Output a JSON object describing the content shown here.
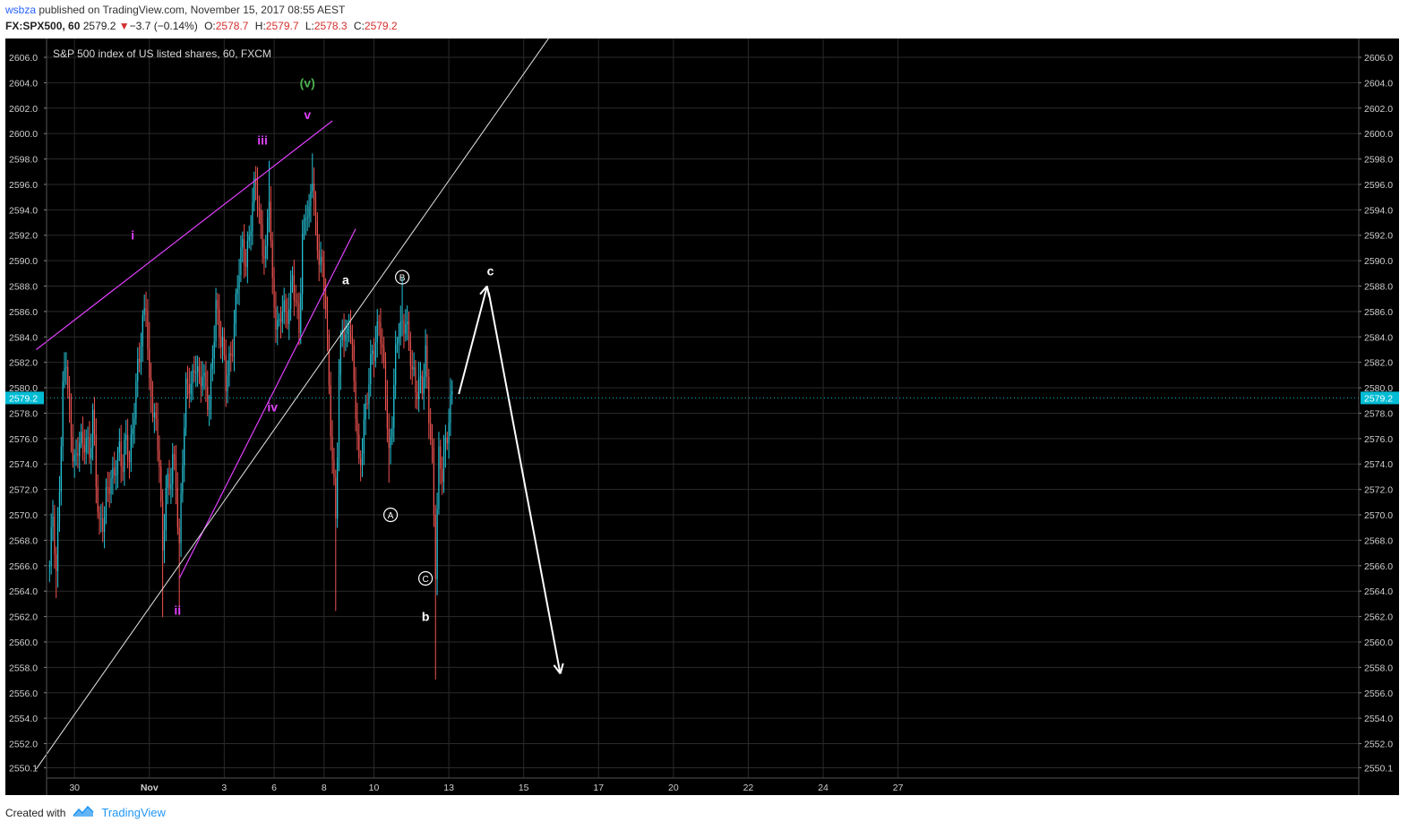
{
  "header": {
    "user": "wsbza",
    "published": " published on TradingView.com, November 15, 2017 08:55 AEST",
    "symbol": "FX:SPX500, 60",
    "last": "2579.2",
    "change": "−3.7 (−0.14%)",
    "open_label": "O:",
    "open": "2578.7",
    "high_label": "H:",
    "high": "2579.7",
    "low_label": "L:",
    "low": "2578.3",
    "close_label": "C:",
    "close": "2579.2"
  },
  "footer": {
    "created_with": "Created with",
    "brand": "TradingView"
  },
  "colors": {
    "background": "#000000",
    "up": "#26c6da",
    "down": "#ef5350",
    "magenta": "#e040fb",
    "green": "#4caf50",
    "white": "#ffffff",
    "price_badge": "#00bcd4"
  },
  "chart_data": {
    "type": "candlestick",
    "title": "S&P 500 index of US listed shares, 60, FXCM",
    "x_ticks": [
      "30",
      "Nov",
      "3",
      "6",
      "8",
      "10",
      "13",
      "15",
      "17",
      "20",
      "22",
      "24",
      "27"
    ],
    "y_ticks": [
      "2606.0",
      "2604.0",
      "2602.0",
      "2600.0",
      "2598.0",
      "2596.0",
      "2594.0",
      "2592.0",
      "2590.0",
      "2588.0",
      "2586.0",
      "2584.0",
      "2582.0",
      "2580.0",
      "2578.0",
      "2576.0",
      "2574.0",
      "2572.0",
      "2570.0",
      "2568.0",
      "2566.0",
      "2564.0",
      "2562.0",
      "2560.0",
      "2558.0",
      "2556.0",
      "2554.0",
      "2552.0",
      "2550.1"
    ],
    "ylim": [
      2549.5,
      2607.5
    ],
    "last_price": "2579.2",
    "grid": true,
    "close_path": [
      [
        0,
        2566.0
      ],
      [
        2,
        2569.5
      ],
      [
        4,
        2565.0
      ],
      [
        6,
        2573.0
      ],
      [
        8,
        2580.0
      ],
      [
        10,
        2582.0
      ],
      [
        12,
        2577.0
      ],
      [
        14,
        2575.5
      ],
      [
        16,
        2574.5
      ],
      [
        18,
        2576.0
      ],
      [
        20,
        2574.5
      ],
      [
        22,
        2576.5
      ],
      [
        24,
        2575.0
      ],
      [
        26,
        2578.0
      ],
      [
        28,
        2572.0
      ],
      [
        30,
        2569.0
      ],
      [
        32,
        2570.0
      ],
      [
        34,
        2571.5
      ],
      [
        36,
        2572.0
      ],
      [
        38,
        2572.5
      ],
      [
        40,
        2574.5
      ],
      [
        42,
        2575.5
      ],
      [
        44,
        2573.5
      ],
      [
        46,
        2575.5
      ],
      [
        48,
        2574.5
      ],
      [
        50,
        2577.5
      ],
      [
        52,
        2580.0
      ],
      [
        54,
        2582.0
      ],
      [
        56,
        2585.0
      ],
      [
        58,
        2587.5
      ],
      [
        60,
        2580.0
      ],
      [
        62,
        2578.0
      ],
      [
        64,
        2576.5
      ],
      [
        66,
        2575.0
      ],
      [
        68,
        2567.0
      ],
      [
        70,
        2572.0
      ],
      [
        72,
        2571.5
      ],
      [
        74,
        2575.0
      ],
      [
        76,
        2573.0
      ],
      [
        78,
        2567.0
      ],
      [
        80,
        2574.0
      ],
      [
        82,
        2580.0
      ],
      [
        84,
        2581.0
      ],
      [
        86,
        2580.5
      ],
      [
        88,
        2581.5
      ],
      [
        90,
        2580.0
      ],
      [
        92,
        2582.0
      ],
      [
        94,
        2580.0
      ],
      [
        96,
        2578.0
      ],
      [
        98,
        2582.0
      ],
      [
        100,
        2587.0
      ],
      [
        102,
        2585.0
      ],
      [
        104,
        2583.0
      ],
      [
        106,
        2580.0
      ],
      [
        108,
        2582.0
      ],
      [
        110,
        2584.0
      ],
      [
        112,
        2586.5
      ],
      [
        114,
        2589.0
      ],
      [
        116,
        2591.0
      ],
      [
        118,
        2590.5
      ],
      [
        120,
        2592.0
      ],
      [
        122,
        2594.0
      ],
      [
        124,
        2596.0
      ],
      [
        126,
        2594.0
      ],
      [
        128,
        2591.5
      ],
      [
        130,
        2590.0
      ],
      [
        132,
        2595.0
      ],
      [
        134,
        2588.0
      ],
      [
        136,
        2586.0
      ],
      [
        138,
        2584.5
      ],
      [
        140,
        2586.0
      ],
      [
        142,
        2585.5
      ],
      [
        144,
        2587.0
      ],
      [
        146,
        2589.0
      ],
      [
        148,
        2586.0
      ],
      [
        150,
        2584.5
      ],
      [
        152,
        2592.0
      ],
      [
        154,
        2594.5
      ],
      [
        156,
        2593.0
      ],
      [
        158,
        2596.5
      ],
      [
        160,
        2592.5
      ],
      [
        162,
        2591.0
      ],
      [
        164,
        2589.0
      ],
      [
        166,
        2586.0
      ],
      [
        168,
        2580.0
      ],
      [
        170,
        2575.0
      ],
      [
        172,
        2570.0
      ],
      [
        174,
        2580.0
      ],
      [
        176,
        2585.0
      ],
      [
        178,
        2584.0
      ],
      [
        180,
        2586.0
      ],
      [
        182,
        2582.0
      ],
      [
        184,
        2578.0
      ],
      [
        186,
        2574.0
      ],
      [
        188,
        2576.0
      ],
      [
        190,
        2578.0
      ],
      [
        192,
        2580.0
      ],
      [
        194,
        2583.0
      ],
      [
        196,
        2584.0
      ],
      [
        198,
        2585.5
      ],
      [
        200,
        2582.0
      ],
      [
        202,
        2580.0
      ],
      [
        204,
        2575.0
      ],
      [
        206,
        2578.0
      ],
      [
        208,
        2582.0
      ],
      [
        210,
        2584.5
      ],
      [
        212,
        2585.0
      ],
      [
        214,
        2586.0
      ],
      [
        216,
        2583.0
      ],
      [
        218,
        2581.0
      ],
      [
        220,
        2580.0
      ],
      [
        222,
        2581.0
      ],
      [
        224,
        2580.0
      ],
      [
        226,
        2582.0
      ],
      [
        228,
        2578.0
      ],
      [
        230,
        2575.0
      ],
      [
        232,
        2566.0
      ],
      [
        234,
        2574.0
      ],
      [
        236,
        2573.0
      ],
      [
        238,
        2576.0
      ],
      [
        240,
        2578.0
      ],
      [
        242,
        2579.2
      ]
    ],
    "time_axis": {
      "bars_per_day": 24,
      "first_bar_day": "Oct 29",
      "tick_bars": [
        15,
        60,
        105,
        135,
        165,
        195,
        240,
        285,
        330,
        375,
        420,
        465,
        510
      ]
    },
    "drawings": {
      "upper_channel": [
        [
          -8,
          2583.0
        ],
        [
          170,
          2601.0
        ]
      ],
      "lower_channel": [
        [
          78,
          2565.0
        ],
        [
          184,
          2592.5
        ]
      ],
      "trendline": [
        [
          -8,
          2550.0
        ],
        [
          300,
          2607.5
        ]
      ],
      "arrow_up": [
        [
          246,
          2579.5
        ],
        [
          263,
          2588.0
        ]
      ],
      "arrow_down": [
        [
          264,
          2587.5
        ],
        [
          307,
          2557.5
        ]
      ]
    },
    "annotations": [
      {
        "text": "i",
        "bar": 50,
        "price": 2592.0,
        "color": "magenta",
        "style": "plain"
      },
      {
        "text": "ii",
        "bar": 77,
        "price": 2562.5,
        "color": "magenta",
        "style": "plain"
      },
      {
        "text": "iii",
        "bar": 128,
        "price": 2599.5,
        "color": "magenta",
        "style": "plain"
      },
      {
        "text": "iv",
        "bar": 134,
        "price": 2578.5,
        "color": "magenta",
        "style": "plain"
      },
      {
        "text": "v",
        "bar": 155,
        "price": 2601.5,
        "color": "magenta",
        "style": "plain"
      },
      {
        "text": "(v)",
        "bar": 155,
        "price": 2604.0,
        "color": "green",
        "style": "plain"
      },
      {
        "text": "a",
        "bar": 178,
        "price": 2588.5,
        "color": "white",
        "style": "plain"
      },
      {
        "text": "b",
        "bar": 226,
        "price": 2562.0,
        "color": "white",
        "style": "plain"
      },
      {
        "text": "c",
        "bar": 265,
        "price": 2589.2,
        "color": "white",
        "style": "plain"
      },
      {
        "text": "A",
        "bar": 205,
        "price": 2570.0,
        "color": "white",
        "style": "circle"
      },
      {
        "text": "B",
        "bar": 212,
        "price": 2588.7,
        "color": "white",
        "style": "circle"
      },
      {
        "text": "C",
        "bar": 226,
        "price": 2565.0,
        "color": "white",
        "style": "circle"
      }
    ]
  }
}
